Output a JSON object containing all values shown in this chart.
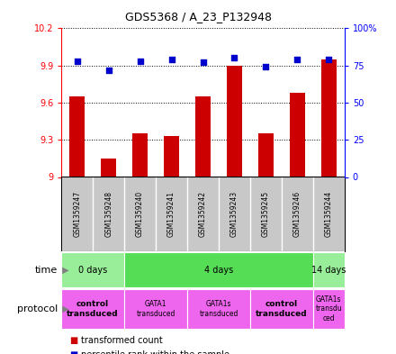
{
  "title": "GDS5368 / A_23_P132948",
  "samples": [
    "GSM1359247",
    "GSM1359248",
    "GSM1359240",
    "GSM1359241",
    "GSM1359242",
    "GSM1359243",
    "GSM1359245",
    "GSM1359246",
    "GSM1359244"
  ],
  "transformed_counts": [
    9.65,
    9.15,
    9.35,
    9.33,
    9.65,
    9.9,
    9.35,
    9.68,
    9.95
  ],
  "percentile_ranks": [
    78,
    72,
    78,
    79,
    77,
    80,
    74,
    79,
    79
  ],
  "ylim_left": [
    9.0,
    10.2
  ],
  "ylim_right": [
    0,
    100
  ],
  "yticks_left": [
    9.0,
    9.3,
    9.6,
    9.9,
    10.2
  ],
  "yticks_right": [
    0,
    25,
    50,
    75,
    100
  ],
  "ytick_labels_right": [
    "0",
    "25",
    "50",
    "75",
    "100%"
  ],
  "bar_color": "#cc0000",
  "dot_color": "#0000cc",
  "time_groups": [
    {
      "label": "0 days",
      "start": 0,
      "end": 2,
      "color": "#99ee99"
    },
    {
      "label": "4 days",
      "start": 2,
      "end": 8,
      "color": "#55dd55"
    },
    {
      "label": "14 days",
      "start": 8,
      "end": 9,
      "color": "#99ee99"
    }
  ],
  "protocol_groups": [
    {
      "label": "control\ntransduced",
      "start": 0,
      "end": 2,
      "color": "#ee66ee",
      "bold": true
    },
    {
      "label": "GATA1\ntransduced",
      "start": 2,
      "end": 4,
      "color": "#ee66ee",
      "bold": false
    },
    {
      "label": "GATA1s\ntransduced",
      "start": 4,
      "end": 6,
      "color": "#ee66ee",
      "bold": false
    },
    {
      "label": "control\ntransduced",
      "start": 6,
      "end": 8,
      "color": "#ee66ee",
      "bold": true
    },
    {
      "label": "GATA1s\ntransdu\nced",
      "start": 8,
      "end": 9,
      "color": "#ee66ee",
      "bold": false
    }
  ],
  "grid_color": "#000000",
  "background_color": "#ffffff",
  "sample_area_color": "#c8c8c8"
}
